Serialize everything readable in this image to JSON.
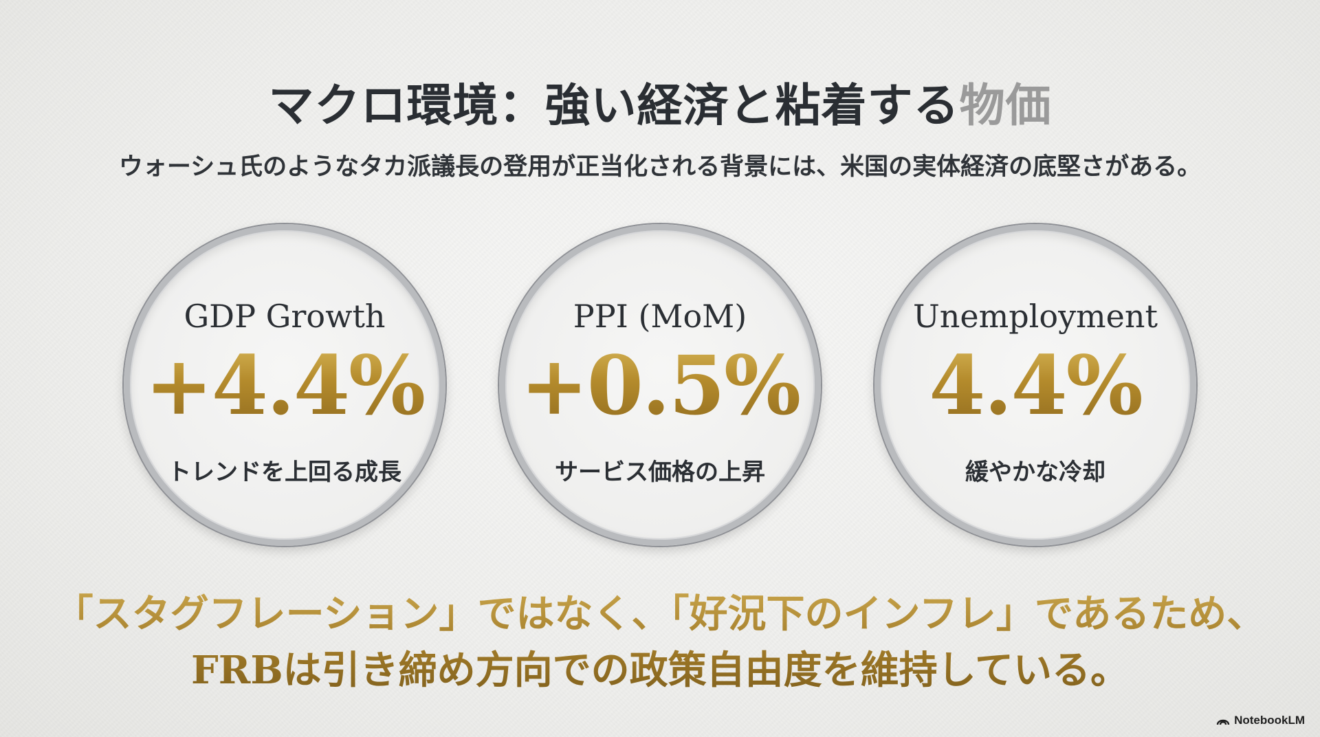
{
  "title": {
    "main": "マクロ環境：強い経済と粘着する",
    "faded": "物価"
  },
  "subtitle": "ウォーシュ氏のようなタカ派議長の登用が正当化される背景には、米国の実体経済の底堅さがある。",
  "metrics": [
    {
      "label": "GDP Growth",
      "value": "+4.4%",
      "caption": "トレンドを上回る成長"
    },
    {
      "label": "PPI (MoM)",
      "value": "+0.5%",
      "caption": "サービス価格の上昇"
    },
    {
      "label": "Unemployment",
      "value": "4.4%",
      "caption": "緩やかな冷却"
    }
  ],
  "conclusion": {
    "line1": "「スタグフレーション」ではなく、「好況下のインフレ」であるため、",
    "line2": "FRBは引き締め方向での政策自由度を維持している。"
  },
  "watermark": {
    "icon": "notebooklm-logo-icon",
    "text": "NotebookLM"
  },
  "colors": {
    "gold": "#b08a2e",
    "silver_ring": "#b9bbbe",
    "text_dark": "#2b2f34",
    "title_faded": "#9a9a9a"
  }
}
